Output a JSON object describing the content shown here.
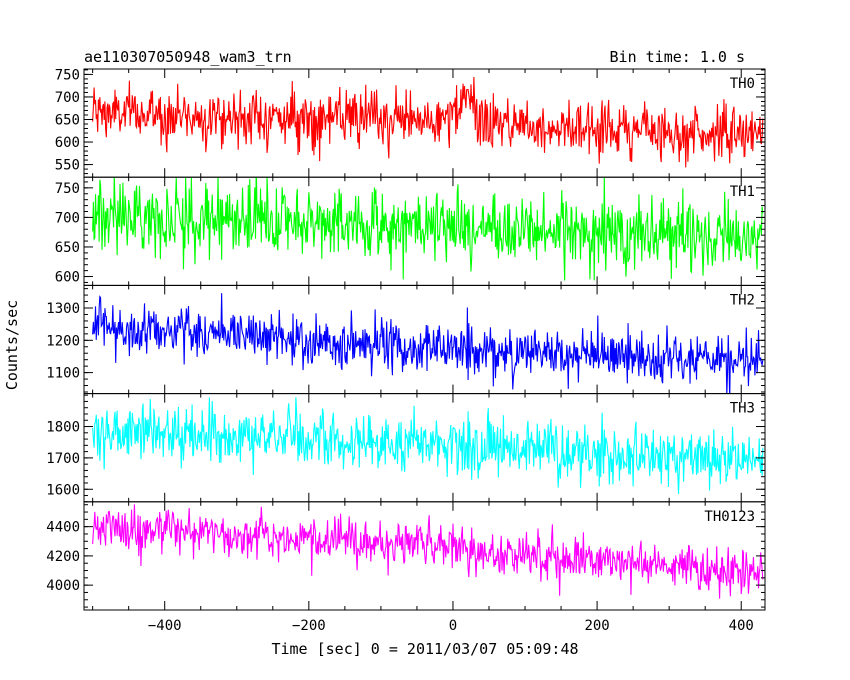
{
  "chart_data": {
    "type": "line",
    "title": "ae110307050948_wam3_trn",
    "bin_time_label": "Bin time: 1.0 s",
    "xlabel": "Time [sec] 0 = 2011/03/07 05:09:48",
    "ylabel": "Counts/sec",
    "xlim": [
      -512,
      433
    ],
    "x_ticks": [
      -400,
      -200,
      0,
      200,
      400
    ],
    "x_tick_labels": [
      "−400",
      "−200",
      "0",
      "200",
      "400"
    ],
    "x_minor_step": 50,
    "bin_time_sec": 1.0,
    "series": [
      {
        "name": "TH0",
        "color": "#ff0000",
        "ylim": [
          522,
          762
        ],
        "y_ticks": [
          550,
          600,
          650,
          700,
          750
        ],
        "y_minor_step": 10,
        "trend": [
          [
            -500,
            665
          ],
          [
            -300,
            655
          ],
          [
            -100,
            650
          ],
          [
            0,
            648
          ],
          [
            15,
            690
          ],
          [
            25,
            700
          ],
          [
            35,
            645
          ],
          [
            200,
            630
          ],
          [
            430,
            615
          ]
        ],
        "noise": 30
      },
      {
        "name": "TH1",
        "color": "#00ff00",
        "ylim": [
          585,
          768
        ],
        "y_ticks": [
          600,
          650,
          700,
          750
        ],
        "y_minor_step": 10,
        "trend": [
          [
            -500,
            705
          ],
          [
            -200,
            692
          ],
          [
            0,
            683
          ],
          [
            200,
            675
          ],
          [
            430,
            668
          ]
        ],
        "noise": 30
      },
      {
        "name": "TH2",
        "color": "#0000ff",
        "ylim": [
          1035,
          1370
        ],
        "y_ticks": [
          1100,
          1200,
          1300
        ],
        "y_minor_step": 20,
        "trend": [
          [
            -500,
            1240
          ],
          [
            -300,
            1225
          ],
          [
            -200,
            1190
          ],
          [
            0,
            1175
          ],
          [
            200,
            1150
          ],
          [
            430,
            1125
          ]
        ],
        "noise": 40
      },
      {
        "name": "TH3",
        "color": "#00ffff",
        "ylim": [
          1560,
          1905
        ],
        "y_ticks": [
          1600,
          1700,
          1800
        ],
        "y_minor_step": 20,
        "trend": [
          [
            -500,
            1785
          ],
          [
            -200,
            1760
          ],
          [
            0,
            1740
          ],
          [
            200,
            1715
          ],
          [
            430,
            1695
          ]
        ],
        "noise": 45
      },
      {
        "name": "TH0123",
        "color": "#ff00ff",
        "ylim": [
          3830,
          4570
        ],
        "y_ticks": [
          4000,
          4200,
          4400
        ],
        "y_minor_step": 50,
        "trend": [
          [
            -500,
            4400
          ],
          [
            -200,
            4320
          ],
          [
            0,
            4250
          ],
          [
            200,
            4170
          ],
          [
            430,
            4090
          ]
        ],
        "noise": 75
      }
    ]
  }
}
